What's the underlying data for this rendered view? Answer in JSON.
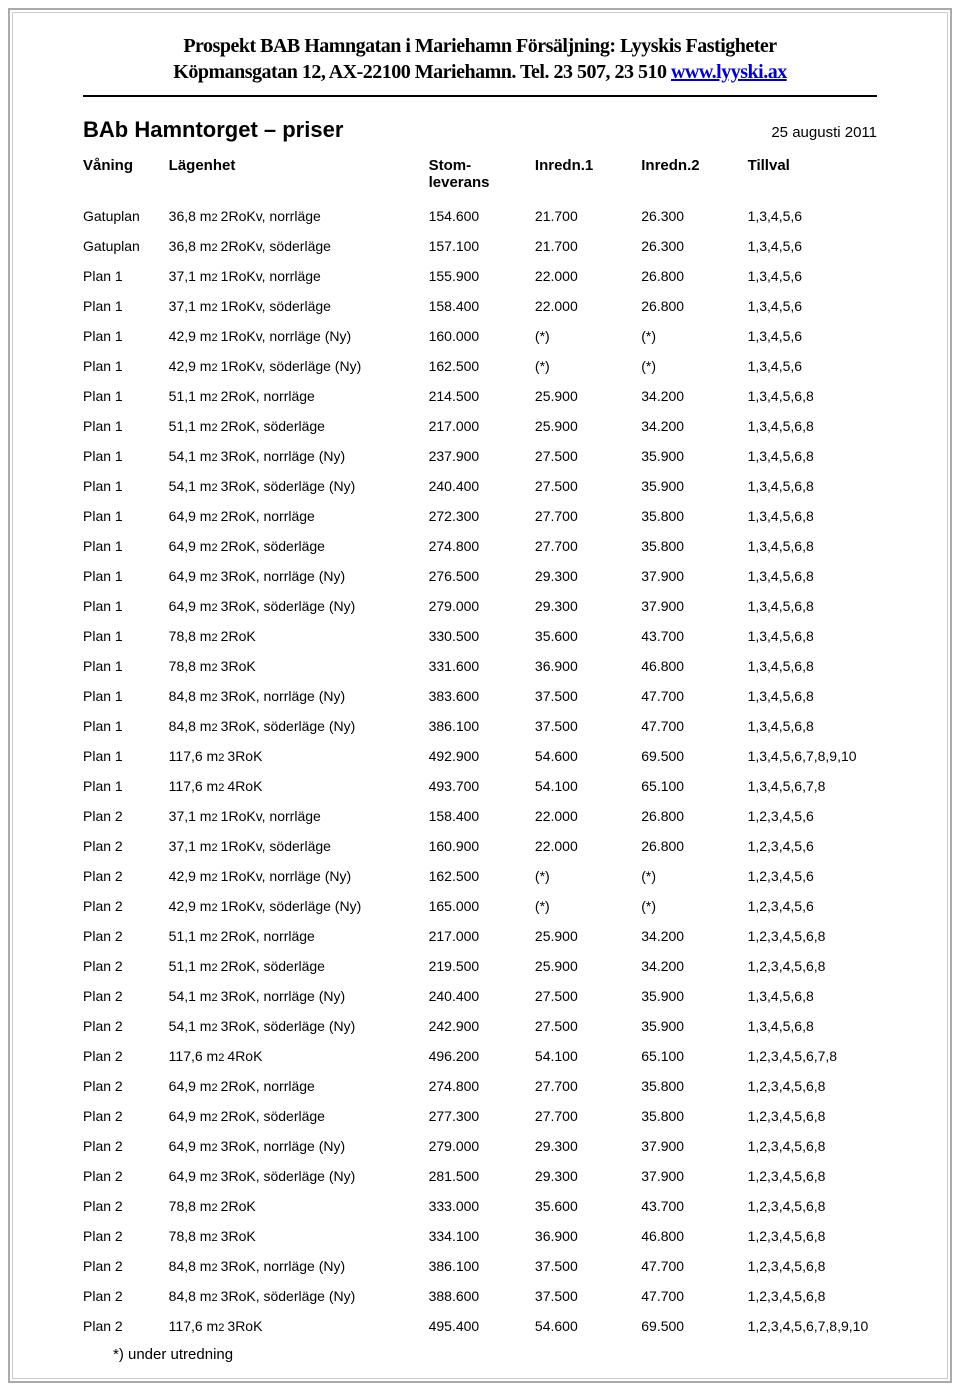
{
  "header": {
    "line1": "Prospekt BAB Hamngatan i Mariehamn  Försäljning: Lyyskis Fastigheter",
    "line2_a": "Köpmansgatan 12, AX-22100 Mariehamn. Tel. 23 507, 23 510 ",
    "link_text": "www.lyyski.ax",
    "link_href": "http://www.lyyski.ax"
  },
  "title": "BAb Hamntorget – priser",
  "date": "25 augusti 2011",
  "columns": {
    "vaning": "Våning",
    "lagenhet": "Lägenhet",
    "stom": "Stom-\nleverans",
    "inredn1": "Inredn.1",
    "inredn2": "Inredn.2",
    "tillval": "Tillval"
  },
  "footnote": "*) under utredning",
  "rows": [
    {
      "vaning": "Gatuplan",
      "area": "36,8",
      "rooms": "2RoKv, norrläge",
      "stom": "154.600",
      "i1": "21.700",
      "i2": "26.300",
      "tillval": "1,3,4,5,6"
    },
    {
      "vaning": "Gatuplan",
      "area": "36,8",
      "rooms": "2RoKv, söderläge",
      "stom": "157.100",
      "i1": "21.700",
      "i2": "26.300",
      "tillval": "1,3,4,5,6"
    },
    {
      "vaning": "Plan 1",
      "area": "37,1",
      "rooms": "1RoKv, norrläge",
      "stom": "155.900",
      "i1": "22.000",
      "i2": "26.800",
      "tillval": "1,3,4,5,6"
    },
    {
      "vaning": "Plan 1",
      "area": "37,1",
      "rooms": "1RoKv, söderläge",
      "stom": "158.400",
      "i1": "22.000",
      "i2": "26.800",
      "tillval": "1,3,4,5,6"
    },
    {
      "vaning": "Plan 1",
      "area": "42,9",
      "rooms": "1RoKv, norrläge (Ny)",
      "stom": "160.000",
      "i1": "(*)",
      "i2": "(*)",
      "tillval": "1,3,4,5,6"
    },
    {
      "vaning": "Plan 1",
      "area": "42,9",
      "rooms": "1RoKv, söderläge (Ny)",
      "stom": "162.500",
      "i1": "(*)",
      "i2": "(*)",
      "tillval": "1,3,4,5,6"
    },
    {
      "vaning": "Plan 1",
      "area": "51,1",
      "rooms": "2RoK, norrläge",
      "stom": "214.500",
      "i1": "25.900",
      "i2": "34.200",
      "tillval": "1,3,4,5,6,8"
    },
    {
      "vaning": "Plan 1",
      "area": "51,1",
      "rooms": "2RoK, söderläge",
      "stom": "217.000",
      "i1": "25.900",
      "i2": "34.200",
      "tillval": "1,3,4,5,6,8"
    },
    {
      "vaning": "Plan 1",
      "area": "54,1",
      "rooms": "3RoK, norrläge (Ny)",
      "stom": "237.900",
      "i1": "27.500",
      "i2": "35.900",
      "tillval": "1,3,4,5,6,8"
    },
    {
      "vaning": "Plan 1",
      "area": "54,1",
      "rooms": "3RoK, söderläge (Ny)",
      "stom": "240.400",
      "i1": "27.500",
      "i2": "35.900",
      "tillval": "1,3,4,5,6,8"
    },
    {
      "vaning": "Plan 1",
      "area": "64,9",
      "rooms": "2RoK, norrläge",
      "stom": "272.300",
      "i1": "27.700",
      "i2": "35.800",
      "tillval": "1,3,4,5,6,8"
    },
    {
      "vaning": "Plan 1",
      "area": "64,9",
      "rooms": "2RoK, söderläge",
      "stom": "274.800",
      "i1": "27.700",
      "i2": "35.800",
      "tillval": "1,3,4,5,6,8"
    },
    {
      "vaning": "Plan 1",
      "area": "64,9",
      "rooms": "3RoK, norrläge (Ny)",
      "stom": "276.500",
      "i1": "29.300",
      "i2": "37.900",
      "tillval": "1,3,4,5,6,8"
    },
    {
      "vaning": "Plan 1",
      "area": "64,9",
      "rooms": "3RoK, söderläge (Ny)",
      "stom": "279.000",
      "i1": "29.300",
      "i2": "37.900",
      "tillval": "1,3,4,5,6,8"
    },
    {
      "vaning": "Plan 1",
      "area": "78,8",
      "rooms": "2RoK",
      "stom": "330.500",
      "i1": "35.600",
      "i2": "43.700",
      "tillval": "1,3,4,5,6,8"
    },
    {
      "vaning": "Plan 1",
      "area": "78,8",
      "rooms": "3RoK",
      "stom": "331.600",
      "i1": "36.900",
      "i2": "46.800",
      "tillval": "1,3,4,5,6,8"
    },
    {
      "vaning": "Plan 1",
      "area": "84,8",
      "rooms": "3RoK, norrläge (Ny)",
      "stom": "383.600",
      "i1": "37.500",
      "i2": "47.700",
      "tillval": "1,3,4,5,6,8"
    },
    {
      "vaning": "Plan 1",
      "area": "84,8",
      "rooms": "3RoK, söderläge (Ny)",
      "stom": "386.100",
      "i1": "37.500",
      "i2": "47.700",
      "tillval": "1,3,4,5,6,8"
    },
    {
      "vaning": "Plan 1",
      "area": "117,6",
      "rooms": "3RoK",
      "stom": "492.900",
      "i1": "54.600",
      "i2": "69.500",
      "tillval": "1,3,4,5,6,7,8,9,10"
    },
    {
      "vaning": "Plan 1",
      "area": "117,6",
      "rooms": "4RoK",
      "stom": "493.700",
      "i1": "54.100",
      "i2": "65.100",
      "tillval": "1,3,4,5,6,7,8"
    },
    {
      "vaning": "Plan 2",
      "area": "37,1",
      "rooms": "1RoKv, norrläge",
      "stom": "158.400",
      "i1": "22.000",
      "i2": "26.800",
      "tillval": "1,2,3,4,5,6"
    },
    {
      "vaning": "Plan 2",
      "area": "37,1",
      "rooms": "1RoKv, söderläge",
      "stom": "160.900",
      "i1": "22.000",
      "i2": "26.800",
      "tillval": "1,2,3,4,5,6"
    },
    {
      "vaning": "Plan 2",
      "area": "42,9",
      "rooms": "1RoKv, norrläge (Ny)",
      "stom": "162.500",
      "i1": "(*)",
      "i2": "(*)",
      "tillval": "1,2,3,4,5,6"
    },
    {
      "vaning": "Plan 2",
      "area": "42,9",
      "rooms": "1RoKv, söderläge (Ny)",
      "stom": "165.000",
      "i1": "(*)",
      "i2": "(*)",
      "tillval": "1,2,3,4,5,6"
    },
    {
      "vaning": "Plan 2",
      "area": "51,1",
      "rooms": "2RoK, norrläge",
      "stom": "217.000",
      "i1": "25.900",
      "i2": "34.200",
      "tillval": "1,2,3,4,5,6,8"
    },
    {
      "vaning": "Plan 2",
      "area": "51,1",
      "rooms": "2RoK, söderläge",
      "stom": "219.500",
      "i1": "25.900",
      "i2": "34.200",
      "tillval": "1,2,3,4,5,6,8"
    },
    {
      "vaning": "Plan 2",
      "area": "54,1",
      "rooms": "3RoK, norrläge (Ny)",
      "stom": "240.400",
      "i1": "27.500",
      "i2": "35.900",
      "tillval": "1,3,4,5,6,8"
    },
    {
      "vaning": "Plan 2",
      "area": "54,1",
      "rooms": "3RoK, söderläge (Ny)",
      "stom": "242.900",
      "i1": "27.500",
      "i2": "35.900",
      "tillval": "1,3,4,5,6,8"
    },
    {
      "vaning": "Plan 2",
      "area": "117,6",
      "rooms": "4RoK",
      "stom": "496.200",
      "i1": "54.100",
      "i2": "65.100",
      "tillval": "1,2,3,4,5,6,7,8"
    },
    {
      "vaning": "Plan 2",
      "area": "64,9",
      "rooms": "2RoK, norrläge",
      "stom": "274.800",
      "i1": "27.700",
      "i2": "35.800",
      "tillval": "1,2,3,4,5,6,8"
    },
    {
      "vaning": "Plan 2",
      "area": "64,9",
      "rooms": "2RoK, söderläge",
      "stom": "277.300",
      "i1": "27.700",
      "i2": "35.800",
      "tillval": "1,2,3,4,5,6,8"
    },
    {
      "vaning": "Plan 2",
      "area": "64,9",
      "rooms": "3RoK, norrläge (Ny)",
      "stom": "279.000",
      "i1": "29.300",
      "i2": "37.900",
      "tillval": "1,2,3,4,5,6,8"
    },
    {
      "vaning": "Plan 2",
      "area": "64,9",
      "rooms": "3RoK, söderläge (Ny)",
      "stom": "281.500",
      "i1": "29.300",
      "i2": "37.900",
      "tillval": "1,2,3,4,5,6,8"
    },
    {
      "vaning": "Plan 2",
      "area": "78,8",
      "rooms": "2RoK",
      "stom": "333.000",
      "i1": "35.600",
      "i2": "43.700",
      "tillval": "1,2,3,4,5,6,8"
    },
    {
      "vaning": "Plan 2",
      "area": "78,8",
      "rooms": "3RoK",
      "stom": "334.100",
      "i1": "36.900",
      "i2": "46.800",
      "tillval": "1,2,3,4,5,6,8"
    },
    {
      "vaning": "Plan 2",
      "area": "84,8",
      "rooms": "3RoK, norrläge (Ny)",
      "stom": "386.100",
      "i1": "37.500",
      "i2": "47.700",
      "tillval": "1,2,3,4,5,6,8"
    },
    {
      "vaning": "Plan 2",
      "area": "84,8",
      "rooms": "3RoK, söderläge (Ny)",
      "stom": "388.600",
      "i1": "37.500",
      "i2": "47.700",
      "tillval": "1,2,3,4,5,6,8"
    },
    {
      "vaning": "Plan 2",
      "area": "117,6",
      "rooms": "3RoK",
      "stom": "495.400",
      "i1": "54.600",
      "i2": "69.500",
      "tillval": "1,2,3,4,5,6,7,8,9,10"
    }
  ]
}
